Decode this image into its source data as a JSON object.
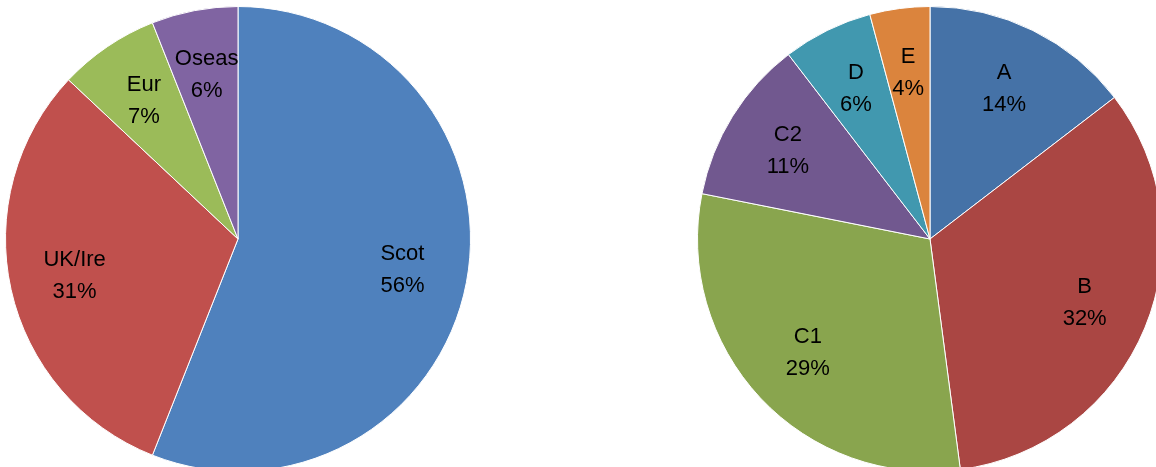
{
  "chart_data": [
    {
      "type": "pie",
      "categories": [
        "Scot",
        "UK/Ire",
        "Eur",
        "Oseas"
      ],
      "values": [
        56,
        31,
        7,
        6
      ],
      "value_labels": [
        "56%",
        "31%",
        "7%",
        "6%"
      ],
      "colors": [
        "#4f81bd",
        "#c0504d",
        "#9bbb59",
        "#8064a2"
      ],
      "legend": false
    },
    {
      "type": "pie",
      "categories": [
        "A",
        "B",
        "C1",
        "C2",
        "D",
        "E"
      ],
      "values": [
        14,
        32,
        29,
        11,
        6,
        4
      ],
      "value_labels": [
        "14%",
        "32%",
        "29%",
        "11%",
        "6%",
        "4%"
      ],
      "colors": [
        "#4572a7",
        "#aa4643",
        "#89a54e",
        "#71588f",
        "#4198af",
        "#db843d"
      ],
      "legend": false
    }
  ]
}
